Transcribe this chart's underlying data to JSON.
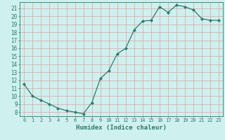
{
  "x": [
    0,
    1,
    2,
    3,
    4,
    5,
    6,
    7,
    8,
    9,
    10,
    11,
    12,
    13,
    14,
    15,
    16,
    17,
    18,
    19,
    20,
    21,
    22,
    23
  ],
  "y": [
    11.5,
    10.0,
    9.5,
    9.0,
    8.5,
    8.2,
    8.0,
    7.8,
    9.2,
    12.2,
    13.2,
    15.3,
    16.0,
    18.3,
    19.4,
    19.5,
    21.2,
    20.5,
    21.4,
    21.2,
    20.8,
    19.7,
    19.5,
    19.5
  ],
  "line_color": "#2d7a6a",
  "marker": "D",
  "marker_size": 2.0,
  "bg_color": "#cef0ee",
  "grid_color": "#d4a8a8",
  "tick_color": "#2d7a6a",
  "xlabel": "Humidex (Indice chaleur)",
  "xlabel_fontsize": 6.5,
  "ylim": [
    7.5,
    21.8
  ],
  "xlim": [
    -0.5,
    23.5
  ],
  "yticks": [
    8,
    9,
    10,
    11,
    12,
    13,
    14,
    15,
    16,
    17,
    18,
    19,
    20,
    21
  ],
  "xticks": [
    0,
    1,
    2,
    3,
    4,
    5,
    6,
    7,
    8,
    9,
    10,
    11,
    12,
    13,
    14,
    15,
    16,
    17,
    18,
    19,
    20,
    21,
    22,
    23
  ]
}
